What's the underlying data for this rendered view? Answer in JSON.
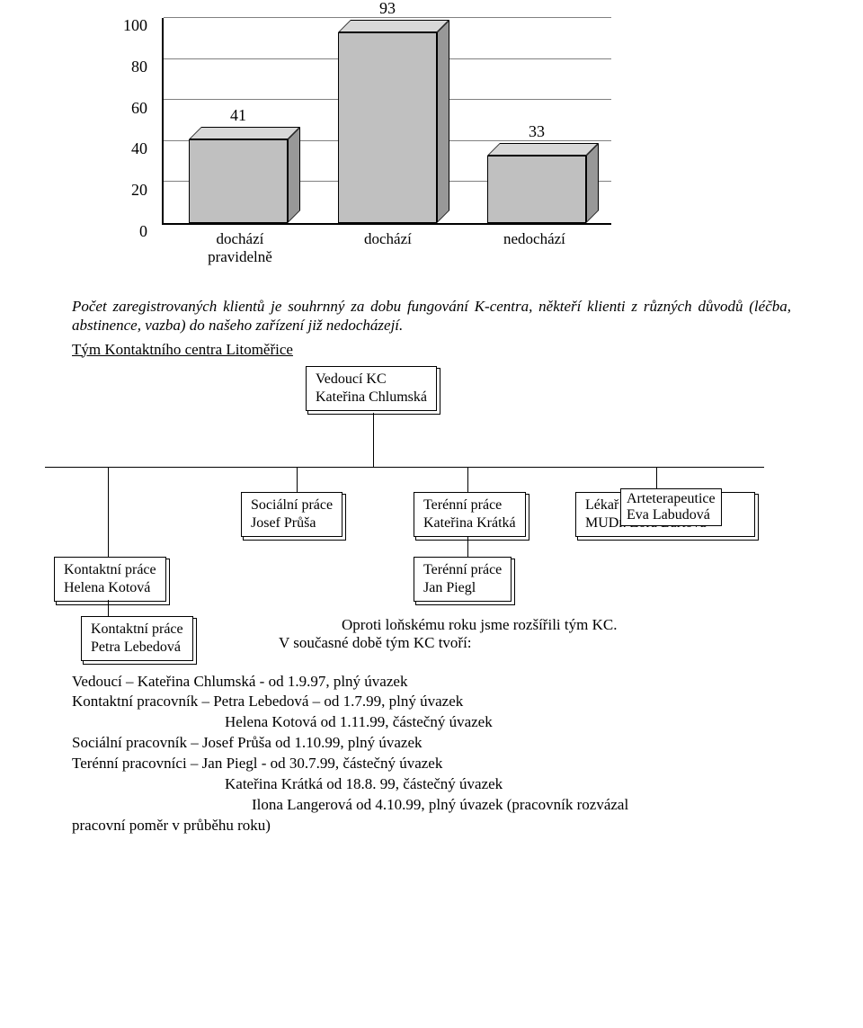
{
  "chart": {
    "type": "bar-3d",
    "ymax": 100,
    "ytick_step": 20,
    "yticks": [
      "0",
      "20",
      "40",
      "60",
      "80",
      "100"
    ],
    "grid_color": "#808080",
    "bar_face": "#c0c0c0",
    "bar_top": "#d8d8d8",
    "bar_side": "#989898",
    "categories": [
      "dochází\npravidelně",
      "dochází",
      "nedochází"
    ],
    "values": [
      41,
      93,
      33
    ]
  },
  "paragraph": "Počet zaregistrovaných klientů je souhrnný za dobu fungování K-centra, někteří klienti  z různých důvodů (léčba, abstinence, vazba) do našeho zařízení již nedocházejí.",
  "subhead": "Tým Kontaktního centra Litoměřice",
  "org": {
    "head_l1": "Vedoucí KC",
    "head_l2": "Kateřina Chlumská",
    "a_l1": "Kontaktní práce",
    "a_l2": "Helena Kotová",
    "a2_l1": "Kontaktní práce",
    "a2_l2": "Petra Lebedová",
    "b_l1": "Sociální práce",
    "b_l2": "Josef  Průša",
    "c_l1": "Terénní  práce",
    "c_l2": "Kateřina Krátká",
    "c2_l1": "Terénní  práce",
    "c2_l2": "Jan Piegl",
    "d_l1": "Lékař pro rodiče",
    "d_l2": "MUDr. Zora Bártová",
    "d2_l1": "Arteterapeutice",
    "d2_l2": "Eva Labudová"
  },
  "after": {
    "intro1": "Oproti loňskému roku jsme rozšířili tým KC.",
    "intro2": "V současné době tým KC tvoří:",
    "l1": "Vedoucí – Kateřina Chlumská -  od 1.9.97, plný úvazek",
    "l2": "Kontaktní pracovník – Petra Lebedová – od 1.7.99, plný úvazek",
    "l2b": "Helena Kotová  od 1.11.99, částečný úvazek",
    "l3": "Sociální pracovník – Josef Průša od 1.10.99, plný úvazek",
    "l4": "Terénní pracovníci – Jan Piegl - od 30.7.99, částečný úvazek",
    "l4b": "Kateřina Krátká od 18.8. 99, částečný úvazek",
    "l4c": "Ilona Langerová od 4.10.99, plný úvazek (pracovník rozvázal",
    "l5": "pracovní poměr v průběhu roku)"
  }
}
